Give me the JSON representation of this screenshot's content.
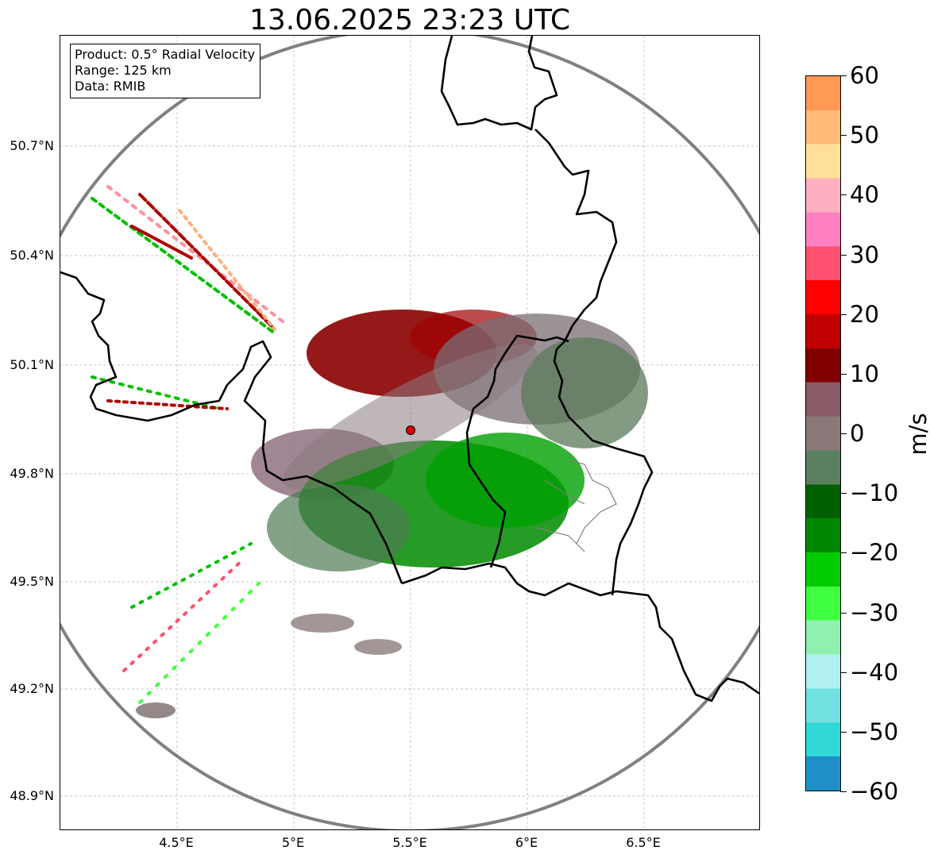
{
  "title": "13.06.2025 23:23 UTC",
  "info": {
    "product": "Product: 0.5° Radial Velocity",
    "range": "Range: 125 km",
    "data": "Data: RMIB"
  },
  "axes": {
    "lat_ticks": [
      "50.7°N",
      "50.4°N",
      "50.1°N",
      "49.8°N",
      "49.5°N",
      "49.2°N",
      "48.9°N"
    ],
    "lon_ticks": [
      "4.5°E",
      "5°E",
      "5.5°E",
      "6°E",
      "6.5°E"
    ]
  },
  "colorbar": {
    "unit": "m/s",
    "ticks": [
      "60",
      "50",
      "40",
      "30",
      "20",
      "10",
      "0",
      "−10",
      "−20",
      "−30",
      "−40",
      "−50",
      "−60"
    ],
    "colors_top_to_bottom": [
      "#ff9955",
      "#ffbb77",
      "#ffe099",
      "#ffb0c0",
      "#ff80c0",
      "#ff5070",
      "#ff0000",
      "#c00000",
      "#800000",
      "#8a5a66",
      "#8a7878",
      "#5a8060",
      "#006000",
      "#008800",
      "#00cc00",
      "#40ff40",
      "#90f0b0",
      "#b0f0f0",
      "#70e0e0",
      "#30d8d8",
      "#2090c8"
    ]
  },
  "map": {
    "radar_site": "RMIB radar",
    "colors": {
      "approaching_strong": "#00a000",
      "approaching_weak": "#5a7a5a",
      "receding_strong": "#8b0000",
      "receding_weak": "#8a6070",
      "border": "#000000",
      "range_ring": "#808080"
    }
  }
}
